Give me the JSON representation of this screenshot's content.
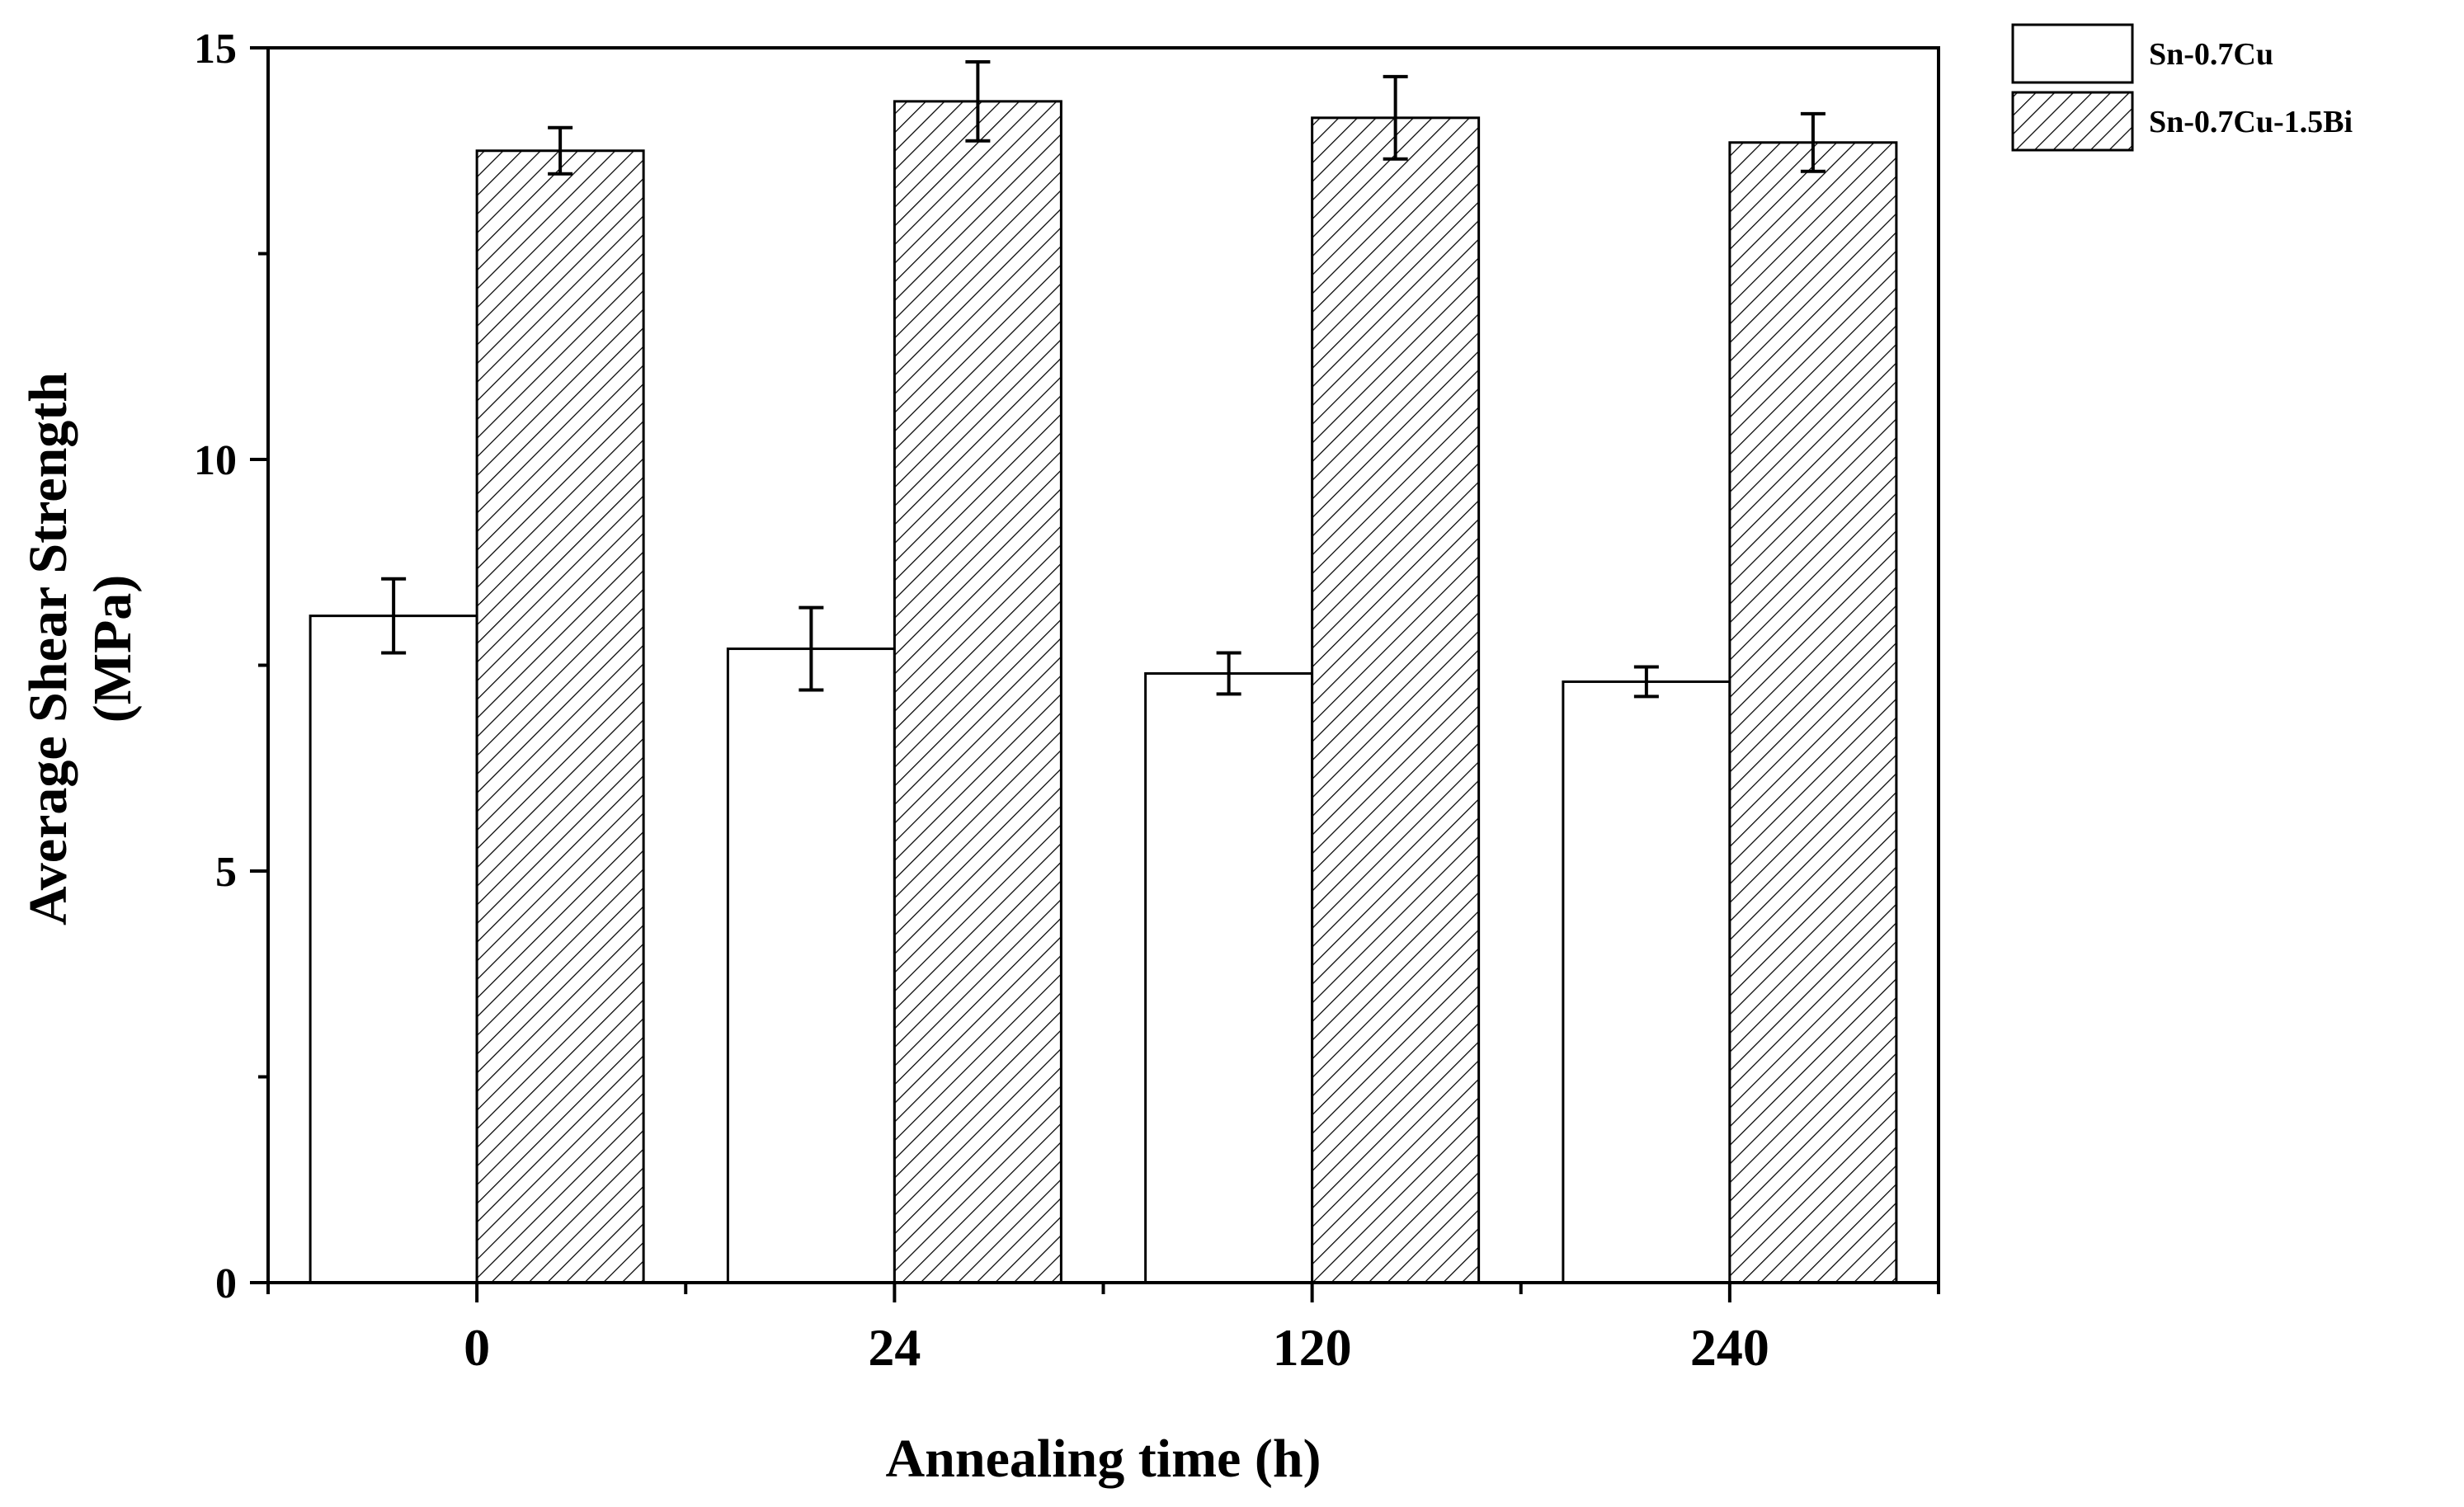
{
  "chart_data": {
    "type": "bar",
    "title": "",
    "xlabel": "Annealing time (h)",
    "ylabel_line1": "Average Shear Strength",
    "ylabel_line2": "(MPa)",
    "categories": [
      "0",
      "24",
      "120",
      "240"
    ],
    "ylim": [
      0,
      15
    ],
    "yticks": [
      0,
      5,
      10,
      15
    ],
    "yticks_labels": [
      "0",
      "5",
      "10",
      "15"
    ],
    "minor_ytick_step": 2.5,
    "legend_position": "top-right, outside plot",
    "series": [
      {
        "name": "Sn-0.7Cu",
        "fill": "plain",
        "values": [
          8.1,
          7.7,
          7.4,
          7.3
        ],
        "errors": [
          0.45,
          0.5,
          0.25,
          0.18
        ]
      },
      {
        "name": "Sn-0.7Cu-1.5Bi",
        "fill": "hatch",
        "values": [
          13.75,
          14.35,
          14.15,
          13.85
        ],
        "errors": [
          0.28,
          0.48,
          0.5,
          0.35
        ]
      }
    ],
    "colors": {
      "bar_stroke": "#000000",
      "plain_fill": "#ffffff",
      "hatch_line": "#000000"
    }
  }
}
